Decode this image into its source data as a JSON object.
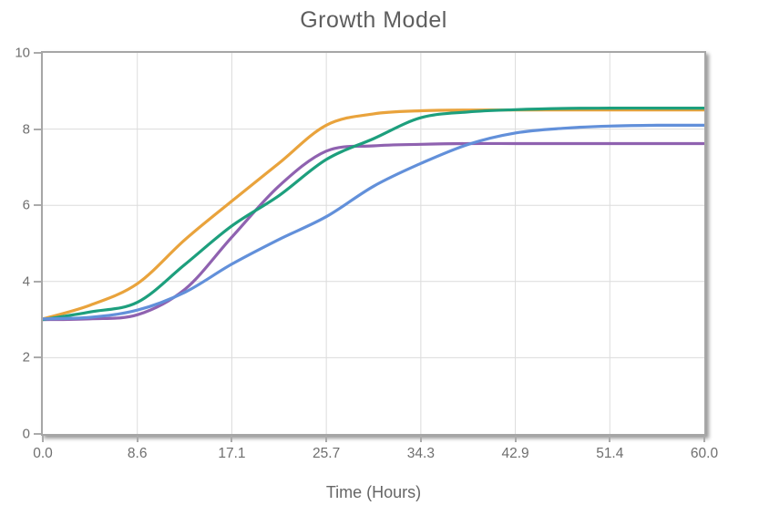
{
  "chart_data": {
    "type": "line",
    "title": "Growth Model",
    "xlabel": "Time (Hours)",
    "ylabel": "",
    "xlim": [
      0,
      60
    ],
    "ylim": [
      0,
      10
    ],
    "grid": true,
    "legend": false,
    "x_tick_labels": [
      "0.0",
      "8.6",
      "17.1",
      "25.7",
      "34.3",
      "42.9",
      "51.4",
      "60.0"
    ],
    "x_tick_values": [
      0,
      8.571,
      17.143,
      25.714,
      34.286,
      42.857,
      51.429,
      60
    ],
    "y_tick_labels": [
      "0",
      "2",
      "4",
      "6",
      "8",
      "10"
    ],
    "y_tick_values": [
      0,
      2,
      4,
      6,
      8,
      10
    ],
    "x": [
      0,
      4.3,
      8.6,
      12.9,
      17.1,
      21.4,
      25.7,
      30,
      34.3,
      38.6,
      42.9,
      47.1,
      51.4,
      55.7,
      60
    ],
    "series": [
      {
        "name": "orange-curve",
        "color": "#E9A33C",
        "values": [
          3.02,
          3.38,
          3.95,
          5.1,
          6.1,
          7.1,
          8.1,
          8.4,
          8.48,
          8.5,
          8.5,
          8.5,
          8.5,
          8.5,
          8.5
        ]
      },
      {
        "name": "purple-curve",
        "color": "#8F62B0",
        "values": [
          3.0,
          3.02,
          3.13,
          3.8,
          5.15,
          6.5,
          7.42,
          7.56,
          7.6,
          7.62,
          7.62,
          7.62,
          7.62,
          7.62,
          7.62
        ]
      },
      {
        "name": "green-curve",
        "color": "#1D9F7D",
        "values": [
          3.0,
          3.2,
          3.46,
          4.45,
          5.45,
          6.25,
          7.2,
          7.75,
          8.3,
          8.45,
          8.51,
          8.54,
          8.55,
          8.55,
          8.55
        ]
      },
      {
        "name": "blue-curve",
        "color": "#6290DA",
        "values": [
          3.02,
          3.06,
          3.25,
          3.72,
          4.45,
          5.1,
          5.7,
          6.5,
          7.1,
          7.6,
          7.9,
          8.02,
          8.08,
          8.1,
          8.1
        ]
      }
    ],
    "style": {
      "grid_color": "#dcdcdc",
      "axis_border_color": "#a6a6a6",
      "tick_color": "#ababab",
      "title_color": "#5e5e5e",
      "label_color": "#6f6f6f",
      "line_width": 3.2
    }
  }
}
